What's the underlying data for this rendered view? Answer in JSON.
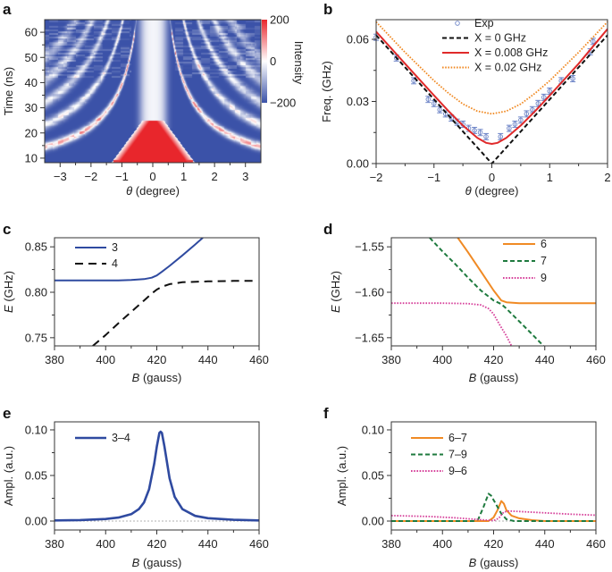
{
  "chart_data": [
    {
      "panel": "a",
      "type": "heatmap",
      "xlabel": "θ (degree)",
      "ylabel": "Time (ns)",
      "xlim": [
        -3.5,
        3.5
      ],
      "ylim": [
        8.2,
        65
      ],
      "xticks": [
        -3,
        -2,
        -1,
        0,
        1,
        2,
        3
      ],
      "yticks": [
        10,
        20,
        30,
        40,
        50,
        60
      ],
      "colorbar": {
        "label": "Intensity",
        "ticks": [
          200,
          0,
          -200
        ],
        "range": [
          -200,
          200
        ],
        "colors": {
          "low": "#3b52a8",
          "mid": "#ffffff",
          "high": "#e8262c"
        }
      }
    },
    {
      "panel": "b",
      "type": "line",
      "xlabel": "θ (degree)",
      "ylabel": "Freq. (GHz)",
      "xlim": [
        -2,
        2
      ],
      "ylim": [
        0,
        0.0695
      ],
      "xticks": [
        -2,
        -1,
        0,
        1,
        2
      ],
      "yticks": [
        0.0,
        0.03,
        0.06
      ],
      "ytick_labels": [
        "0.00",
        "0.03",
        "0.06"
      ],
      "series": [
        {
          "name": "Exp",
          "style": "circle-errorbar",
          "color": "#6f86c8",
          "yerr": 0.0015,
          "x": [
            -2,
            -1.65,
            -1.35,
            -1.1,
            -1.0,
            -0.9,
            -0.8,
            -0.7,
            -0.6,
            -0.5,
            -0.4,
            -0.3,
            -0.2,
            -0.1,
            0.15,
            0.3,
            0.4,
            0.5,
            0.6,
            0.7,
            0.8,
            0.9,
            1.0,
            1.2,
            1.4,
            1.7,
            1.75
          ],
          "y": [
            0.061,
            0.051,
            0.04,
            0.031,
            0.029,
            0.026,
            0.024,
            0.022,
            0.02,
            0.019,
            0.017,
            0.016,
            0.015,
            0.013,
            0.013,
            0.017,
            0.019,
            0.021,
            0.024,
            0.026,
            0.029,
            0.032,
            0.035,
            0.04,
            0.041,
            0.054,
            0.059
          ]
        },
        {
          "name": "X = 0 GHz",
          "style": "dashed",
          "color": "#111111",
          "x": [
            -2,
            -1,
            0,
            1,
            2
          ],
          "y": [
            0.062,
            0.031,
            0,
            0.031,
            0.062
          ]
        },
        {
          "name": "X = 0.008 GHz",
          "style": "solid",
          "color": "#e02a2a",
          "x": [
            -2,
            -1.5,
            -1,
            -0.75,
            -0.5,
            -0.25,
            -0.1,
            0,
            0.1,
            0.25,
            0.5,
            0.75,
            1,
            1.5,
            2
          ],
          "y": [
            0.0637,
            0.0482,
            0.0329,
            0.0254,
            0.0184,
            0.0124,
            0.01,
            0.0095,
            0.01,
            0.0124,
            0.0184,
            0.0254,
            0.0329,
            0.0482,
            0.065
          ]
        },
        {
          "name": "X = 0.02 GHz",
          "style": "dotted",
          "color": "#f08a24",
          "x": [
            -2,
            -1.5,
            -1,
            -0.75,
            -0.5,
            -0.25,
            0,
            0.25,
            0.5,
            0.75,
            1,
            1.5,
            2
          ],
          "y": [
            0.0684,
            0.0537,
            0.04,
            0.034,
            0.0288,
            0.0253,
            0.024,
            0.0253,
            0.0288,
            0.034,
            0.04,
            0.0537,
            0.0684
          ]
        }
      ]
    },
    {
      "panel": "c",
      "type": "line",
      "xlabel": "B (gauss)",
      "ylabel": "E (GHz)",
      "xlim": [
        380,
        460
      ],
      "ylim": [
        0.741,
        0.86
      ],
      "xticks": [
        380,
        400,
        420,
        440,
        460
      ],
      "yticks": [
        0.75,
        0.8,
        0.85
      ],
      "ytick_labels": [
        "0.75",
        "0.80",
        "0.85"
      ],
      "series": [
        {
          "name": "3",
          "style": "solid",
          "color": "#2f4aa0",
          "x": [
            380,
            390,
            400,
            405,
            410,
            415,
            418,
            420,
            422,
            425,
            430,
            435,
            438
          ],
          "y": [
            0.813,
            0.813,
            0.813,
            0.813,
            0.8135,
            0.8145,
            0.816,
            0.8185,
            0.8225,
            0.829,
            0.8405,
            0.8525,
            0.86
          ]
        },
        {
          "name": "4",
          "style": "longdash",
          "color": "#111111",
          "x": [
            395,
            400,
            405,
            410,
            415,
            418,
            420,
            422,
            425,
            430,
            440,
            450,
            458
          ],
          "y": [
            0.741,
            0.753,
            0.766,
            0.7785,
            0.791,
            0.7985,
            0.803,
            0.806,
            0.809,
            0.811,
            0.812,
            0.8125,
            0.8125
          ]
        }
      ]
    },
    {
      "panel": "d",
      "type": "line",
      "xlabel": "B (gauss)",
      "ylabel": "E (GHz)",
      "xlim": [
        380,
        460
      ],
      "ylim": [
        -1.659,
        -1.54
      ],
      "xticks": [
        380,
        400,
        420,
        440,
        460
      ],
      "yticks": [
        -1.65,
        -1.6,
        -1.55
      ],
      "ytick_labels": [
        "−1.65",
        "−1.60",
        "−1.55"
      ],
      "series": [
        {
          "name": "6",
          "style": "solid",
          "color": "#f08a24",
          "x": [
            406,
            410,
            415,
            420,
            423,
            425,
            430,
            460
          ],
          "y": [
            -1.54,
            -1.556,
            -1.577,
            -1.598,
            -1.609,
            -1.611,
            -1.612,
            -1.612
          ]
        },
        {
          "name": "7",
          "style": "dashed",
          "color": "#1e7a3e",
          "x": [
            395,
            400,
            405,
            410,
            415,
            420,
            423,
            425,
            430,
            435,
            439.5
          ],
          "y": [
            -1.54,
            -1.555,
            -1.569,
            -1.584,
            -1.598,
            -1.609,
            -1.613,
            -1.618,
            -1.632,
            -1.646,
            -1.659
          ]
        },
        {
          "name": "9",
          "style": "dotted",
          "color": "#d6409a",
          "x": [
            380,
            400,
            410,
            415,
            418,
            420,
            422,
            425,
            427
          ],
          "y": [
            -1.612,
            -1.612,
            -1.6125,
            -1.614,
            -1.618,
            -1.624,
            -1.634,
            -1.648,
            -1.659
          ]
        }
      ]
    },
    {
      "panel": "e",
      "type": "line",
      "xlabel": "B (gauss)",
      "ylabel": "Ampl. (a.u.)",
      "xlim": [
        380,
        460
      ],
      "ylim": [
        -0.0098,
        0.1088
      ],
      "xticks": [
        380,
        400,
        420,
        440,
        460
      ],
      "yticks": [
        0.0,
        0.05,
        0.1
      ],
      "ytick_labels": [
        "0.00",
        "0.05",
        "0.10"
      ],
      "zero_line": true,
      "series": [
        {
          "name": "3–4",
          "style": "solid-thick",
          "color": "#2f4aa0",
          "x": [
            380,
            390,
            400,
            405,
            410,
            413,
            415,
            417,
            419,
            420,
            421,
            421.5,
            422,
            423,
            425,
            427,
            430,
            435,
            440,
            450,
            460
          ],
          "y": [
            0.0007,
            0.0011,
            0.0023,
            0.0038,
            0.0075,
            0.0131,
            0.0204,
            0.035,
            0.0628,
            0.0816,
            0.0966,
            0.098,
            0.0966,
            0.0816,
            0.0469,
            0.0266,
            0.0131,
            0.0057,
            0.0031,
            0.0014,
            0.0007
          ]
        }
      ]
    },
    {
      "panel": "f",
      "type": "line",
      "xlabel": "B (gauss)",
      "ylabel": "Ampl. (a.u.)",
      "xlim": [
        380,
        460
      ],
      "ylim": [
        -0.0098,
        0.1088
      ],
      "xticks": [
        380,
        400,
        420,
        440,
        460
      ],
      "yticks": [
        0.0,
        0.05,
        0.1
      ],
      "ytick_labels": [
        "0.00",
        "0.05",
        "0.10"
      ],
      "zero_line": true,
      "series": [
        {
          "name": "6–7",
          "style": "solid",
          "color": "#f08a24",
          "x": [
            380,
            418,
            420,
            421.5,
            423,
            424,
            425,
            427,
            430,
            435,
            440,
            460
          ],
          "y": [
            0,
            0,
            0.004,
            0.012,
            0.022,
            0.019,
            0.012,
            0.006,
            0.003,
            0.001,
            0,
            0
          ]
        },
        {
          "name": "7–9",
          "style": "dashed",
          "color": "#1e7a3e",
          "x": [
            380,
            412,
            414,
            416,
            418,
            419,
            421,
            423,
            425,
            428,
            460
          ],
          "y": [
            0,
            0,
            0.002,
            0.015,
            0.03,
            0.028,
            0.018,
            0.008,
            0.002,
            0,
            0
          ]
        },
        {
          "name": "9–6",
          "style": "dotted",
          "color": "#d6409a",
          "x": [
            380,
            395,
            405,
            415,
            420,
            422,
            424,
            426,
            430,
            440,
            450,
            460
          ],
          "y": [
            0.006,
            0.005,
            0.0035,
            0.0015,
            0.0005,
            0.003,
            0.01,
            0.011,
            0.0105,
            0.009,
            0.0075,
            0.0065
          ]
        }
      ]
    }
  ]
}
